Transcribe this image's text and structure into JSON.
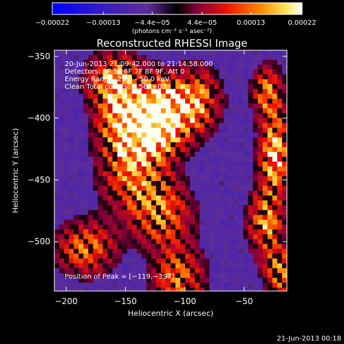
{
  "chart_data": {
    "type": "heatmap",
    "title": "Reconstructed RHESSI Image",
    "xlabel": "Heliocentric X (arcsec)",
    "ylabel": "Heliocentric Y (arcsec)",
    "xlim": [
      -210,
      -14
    ],
    "ylim": [
      -540,
      -345
    ],
    "xticks": [
      -200,
      -150,
      -100,
      -50
    ],
    "xtick_labels": [
      "−200",
      "−150",
      "−100",
      "−50"
    ],
    "yticks": [
      -350,
      -400,
      -450,
      -500
    ],
    "ytick_labels": [
      "−350",
      "−400",
      "−450",
      "−500"
    ],
    "colorbar": {
      "range": [
        -0.00022,
        0.00022
      ],
      "tick_values": [
        -0.00022,
        -0.00013,
        -4.4e-05,
        4.4e-05,
        0.00013,
        0.00022
      ],
      "tick_labels": [
        "−0.00022",
        "−0.00013",
        "−4.4e−05",
        "4.4e−05",
        "0.00013",
        "0.00022"
      ],
      "units": "(photons cm⁻² s⁻¹ asec⁻²)"
    },
    "peak": [
      -119,
      -397
    ],
    "sources": [
      {
        "x": -118,
        "y": -392,
        "sx": 18,
        "sy": 16,
        "amp": 1.0
      },
      {
        "x": -128,
        "y": -412,
        "sx": 16,
        "sy": 14,
        "amp": 0.8
      },
      {
        "x": -152,
        "y": -405,
        "sx": 14,
        "sy": 22,
        "amp": 0.7
      },
      {
        "x": -160,
        "y": -370,
        "sx": 14,
        "sy": 14,
        "amp": 0.6
      },
      {
        "x": -140,
        "y": -450,
        "sx": 18,
        "sy": 20,
        "amp": 0.5
      },
      {
        "x": -118,
        "y": -480,
        "sx": 16,
        "sy": 18,
        "amp": 0.45
      },
      {
        "x": -105,
        "y": -530,
        "sx": 14,
        "sy": 16,
        "amp": 0.5
      },
      {
        "x": -88,
        "y": -385,
        "sx": 12,
        "sy": 16,
        "amp": 0.45
      },
      {
        "x": -183,
        "y": -505,
        "sx": 16,
        "sy": 14,
        "amp": 0.5
      },
      {
        "x": -30,
        "y": -380,
        "sx": 8,
        "sy": 14,
        "amp": 0.55
      },
      {
        "x": -24,
        "y": -430,
        "sx": 8,
        "sy": 22,
        "amp": 0.75
      },
      {
        "x": -32,
        "y": -485,
        "sx": 9,
        "sy": 18,
        "amp": 0.6
      },
      {
        "x": -20,
        "y": -525,
        "sx": 8,
        "sy": 14,
        "amp": 0.55
      }
    ]
  },
  "annotations": {
    "time_range": "20-Jun-2013 21:09:42.000 to 21:14:58.000",
    "detectors": "Detectors: 3F 5F 6F 7F 8F 9F, Att 0",
    "energy": "Energy Range: 25.0 - 50.0 keV",
    "clean": "Clean     Total counts: 7.56E+03",
    "peak_text": "Position of Peak = [−119,−397]"
  },
  "footer": {
    "date": "21-Jun-2013 00:18"
  }
}
